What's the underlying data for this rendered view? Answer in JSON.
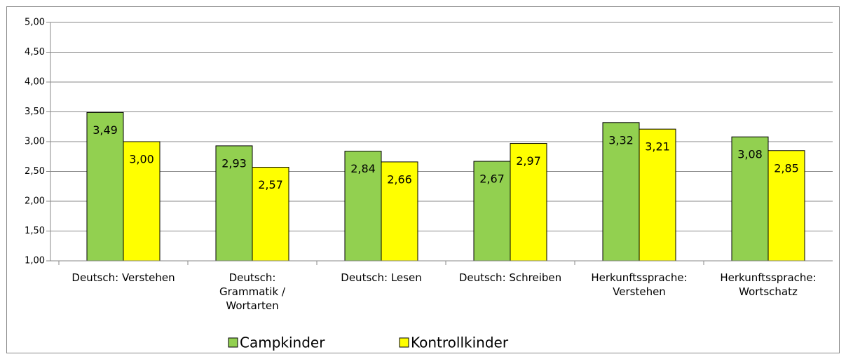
{
  "chart_data": {
    "type": "bar",
    "categories": [
      "Deutsch: Verstehen",
      "Deutsch:\nGrammatik /\nWortarten",
      "Deutsch: Lesen",
      "Deutsch: Schreiben",
      "Herkunftssprache:\nVerstehen",
      "Herkunftssprache:\nWortschatz"
    ],
    "series": [
      {
        "name": "Campkinder",
        "color": "#92d050",
        "values": [
          3.49,
          2.93,
          2.84,
          2.67,
          3.32,
          3.08
        ],
        "value_labels": [
          "3,49",
          "2,93",
          "2,84",
          "2,67",
          "3,32",
          "3,08"
        ]
      },
      {
        "name": "Kontrollkinder",
        "color": "#ffff00",
        "values": [
          3.0,
          2.57,
          2.66,
          2.97,
          3.21,
          2.85
        ],
        "value_labels": [
          "3,00",
          "2,57",
          "2,66",
          "2,97",
          "3,21",
          "2,85"
        ]
      }
    ],
    "ylim": [
      1,
      5
    ],
    "yticks": [
      {
        "value": 1,
        "label": "1,00"
      },
      {
        "value": 1.5,
        "label": "1,50"
      },
      {
        "value": 2,
        "label": "2,00"
      },
      {
        "value": 2.5,
        "label": "2,50"
      },
      {
        "value": 3,
        "label": "3,00"
      },
      {
        "value": 3.5,
        "label": "3,50"
      },
      {
        "value": 4,
        "label": "4,00"
      },
      {
        "value": 4.5,
        "label": "4,50"
      },
      {
        "value": 5,
        "label": "5,00"
      }
    ],
    "grid": true,
    "legend": "bottom"
  }
}
